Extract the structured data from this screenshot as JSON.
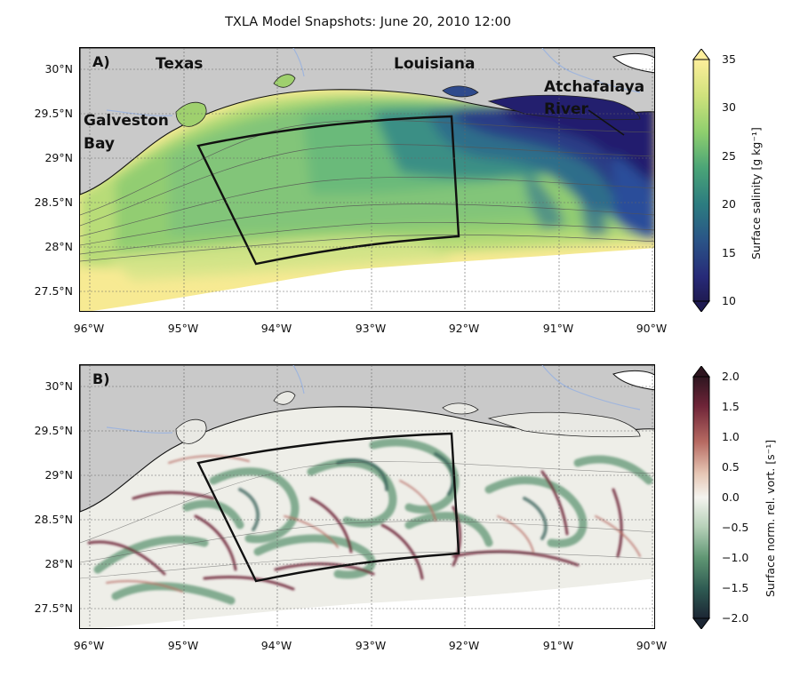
{
  "figure": {
    "title": "TXLA Model Snapshots: June 20, 2010 12:00"
  },
  "axes": {
    "lat_ticks": [
      "30°N",
      "29.5°N",
      "29°N",
      "28.5°N",
      "28°N",
      "27.5°N"
    ],
    "lon_ticks": [
      "96°W",
      "95°W",
      "94°W",
      "93°W",
      "92°W",
      "91°W",
      "90°W"
    ]
  },
  "panels": [
    {
      "tag": "A)",
      "field": "Surface salinity",
      "colorbar": {
        "label": "Surface salinity [g kg⁻¹]",
        "ticks": [
          "35",
          "30",
          "25",
          "20",
          "15",
          "10"
        ],
        "range": [
          10,
          35
        ],
        "extend": "both",
        "colormap": [
          "#fdee9b",
          "#cfe27c",
          "#8fcf6e",
          "#4aa477",
          "#2c7c80",
          "#2a5487",
          "#272a78",
          "#1f1b52"
        ]
      },
      "labels": {
        "texas": "Texas",
        "louisiana": "Louisiana",
        "galveston1": "Galveston",
        "galveston2": "Bay",
        "atchafalaya1": "Atchafalaya",
        "atchafalaya2": "River"
      }
    },
    {
      "tag": "B)",
      "field": "Surface norm. rel. vort.",
      "colorbar": {
        "label": "Surface norm. rel. vort. [s⁻¹]",
        "ticks": [
          "2.0",
          "1.5",
          "1.0",
          "0.5",
          "0.0",
          "−0.5",
          "−1.0",
          "−1.5",
          "−2.0"
        ],
        "range": [
          -2.0,
          2.0
        ],
        "extend": "both",
        "colormap": [
          "#2e1620",
          "#6e2438",
          "#b76a62",
          "#e6c6b4",
          "#f4f4ef",
          "#b7d1b9",
          "#5f9673",
          "#2e5a52",
          "#1c2634"
        ]
      }
    }
  ],
  "colors": {
    "land": "#c9c9c9",
    "river": "#9fb5dd",
    "box": "#111111",
    "open_water": "#ffffff"
  }
}
